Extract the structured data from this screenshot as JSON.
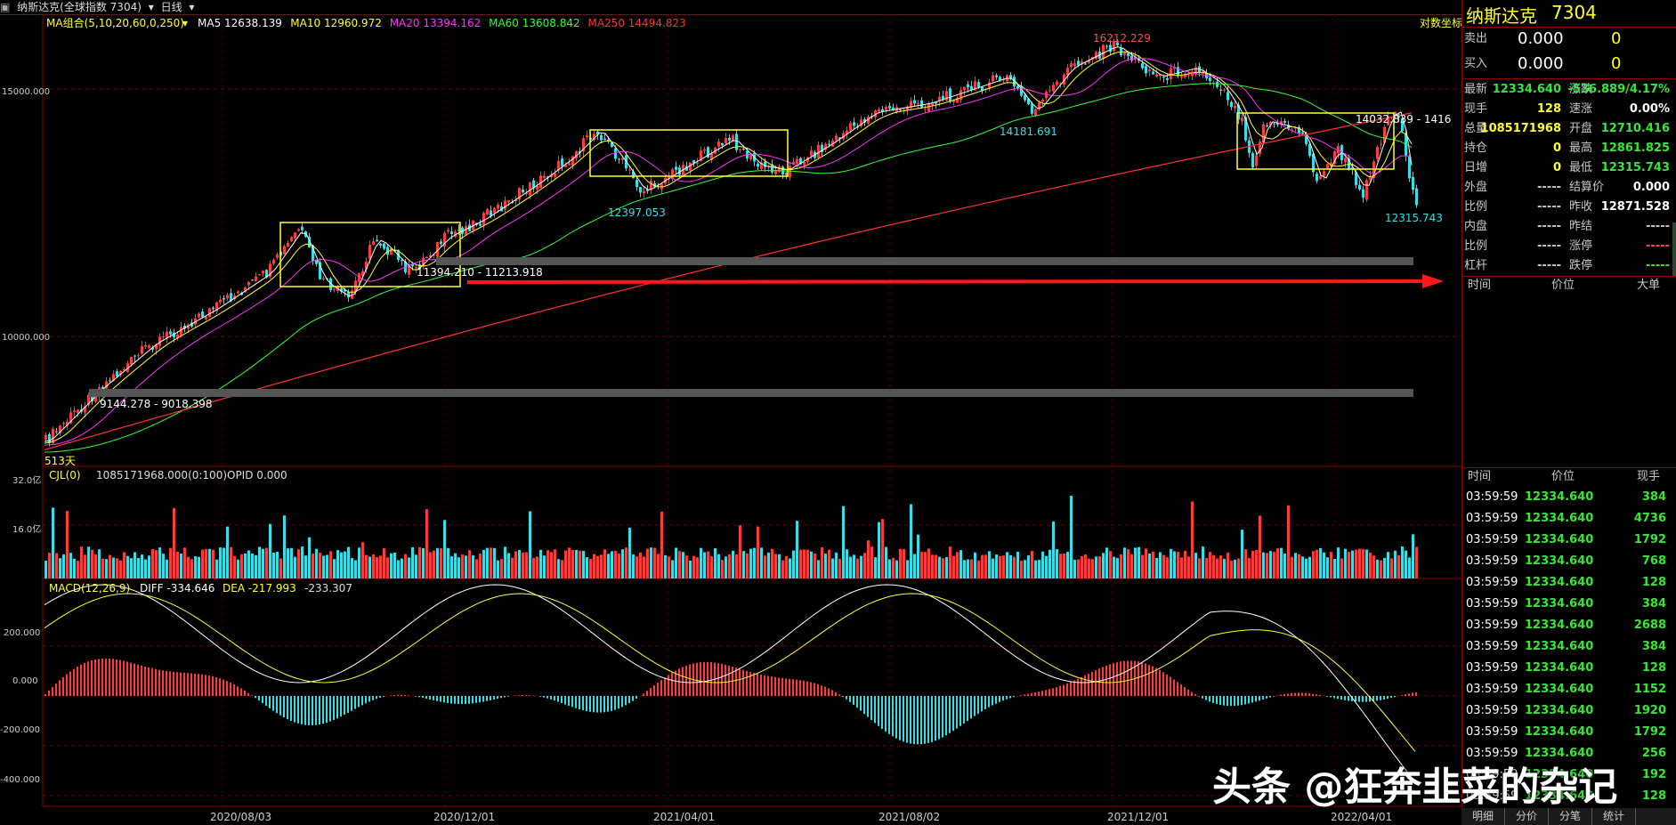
{
  "header": {
    "instrument": "纳斯达克(全球指数 7304)",
    "period": "日线",
    "ma_legend": "MA组合(5,10,20,60,0,250)",
    "ma_items": [
      {
        "label": "MA5 12638.139",
        "color": "#ffffff"
      },
      {
        "label": "MA10 12960.972",
        "color": "#ffff33"
      },
      {
        "label": "MA20 13394.162",
        "color": "#ff33ff"
      },
      {
        "label": "MA60 13608.842",
        "color": "#33ff33"
      },
      {
        "label": "MA250 14494.823",
        "color": "#ff3333"
      }
    ],
    "log_axis": "对数坐标"
  },
  "price_axis": {
    "labels": [
      "15000.000",
      "10000.000"
    ]
  },
  "annotations": {
    "start_days": "513天",
    "box1_range": "11394.210 - 11213.918",
    "lower_range": "9144.278 - 9018.398",
    "low1": "12397.053",
    "low2": "14181.691",
    "high": "16212.229",
    "box4_range": "14032.839 - 1416",
    "last_low": "12315.743"
  },
  "volume_panel": {
    "legend": "CJL(0)",
    "value": "1085171968.000(0:100)",
    "opid": "OPID 0.000",
    "axis": [
      "32.0亿",
      "16.0亿"
    ]
  },
  "macd_panel": {
    "legend": "MACD(12,26,9)",
    "diff": "DIFF -334.646",
    "dea": "DEA -217.993",
    "macd": "-233.307",
    "axis": [
      "200.000",
      "0.000",
      "-200.000",
      "-400.000"
    ]
  },
  "x_axis": [
    "2020/08/03",
    "2020/12/01",
    "2021/04/01",
    "2021/08/02",
    "2021/12/01",
    "2022/04/01"
  ],
  "quote": {
    "name": "纳斯达克",
    "code": "7304",
    "sell": {
      "label": "卖出",
      "price": "0.000",
      "vol": "0"
    },
    "buy": {
      "label": "买入",
      "price": "0.000",
      "vol": "0"
    },
    "left": [
      {
        "label": "最新",
        "value": "12334.640",
        "cls": "g"
      },
      {
        "label": "现手",
        "value": "128",
        "cls": "y"
      },
      {
        "label": "总量",
        "value": "1085171968",
        "cls": "y"
      },
      {
        "label": "持仓",
        "value": "0",
        "cls": "y"
      },
      {
        "label": "日增",
        "value": "0",
        "cls": "y"
      },
      {
        "label": "外盘",
        "value": "-----",
        "cls": "lbl"
      },
      {
        "label": "比例",
        "value": "-----",
        "cls": "lbl"
      },
      {
        "label": "内盘",
        "value": "-----",
        "cls": "lbl"
      },
      {
        "label": "比例",
        "value": "-----",
        "cls": "lbl"
      },
      {
        "label": "杠杆",
        "value": "-----",
        "cls": "lbl"
      }
    ],
    "right": [
      {
        "label": "涨跌",
        "value": "-536.889/4.17%",
        "cls": "g"
      },
      {
        "label": "速涨",
        "value": "0.00%",
        "cls": "w"
      },
      {
        "label": "开盘",
        "value": "12710.416",
        "cls": "g"
      },
      {
        "label": "最高",
        "value": "12861.825",
        "cls": "g"
      },
      {
        "label": "最低",
        "value": "12315.743",
        "cls": "g"
      },
      {
        "label": "结算价",
        "value": "0.000",
        "cls": "w"
      },
      {
        "label": "昨收",
        "value": "12871.528",
        "cls": "w"
      },
      {
        "label": "昨结",
        "value": "-----",
        "cls": "lbl"
      },
      {
        "label": "涨停",
        "value": "-----",
        "cls": "r"
      },
      {
        "label": "跌停",
        "value": "-----",
        "cls": "g"
      }
    ]
  },
  "ticks_header1": {
    "time": "时间",
    "price": "价位",
    "vol": "大单"
  },
  "ticks_header2": {
    "time": "时间",
    "price": "价位",
    "vol": "现手"
  },
  "ticks": [
    {
      "time": "03:59:59",
      "price": "12334.640",
      "vol": "384"
    },
    {
      "time": "03:59:59",
      "price": "12334.640",
      "vol": "4736"
    },
    {
      "time": "03:59:59",
      "price": "12334.640",
      "vol": "1792"
    },
    {
      "time": "03:59:59",
      "price": "12334.640",
      "vol": "768"
    },
    {
      "time": "03:59:59",
      "price": "12334.640",
      "vol": "128"
    },
    {
      "time": "03:59:59",
      "price": "12334.640",
      "vol": "384"
    },
    {
      "time": "03:59:59",
      "price": "12334.640",
      "vol": "2688"
    },
    {
      "time": "03:59:59",
      "price": "12334.640",
      "vol": "384"
    },
    {
      "time": "03:59:59",
      "price": "12334.640",
      "vol": "128"
    },
    {
      "time": "03:59:59",
      "price": "12334.640",
      "vol": "1152"
    },
    {
      "time": "03:59:59",
      "price": "12334.640",
      "vol": "1920"
    },
    {
      "time": "03:59:59",
      "price": "12334.640",
      "vol": "1792"
    },
    {
      "time": "03:59:59",
      "price": "12334.640",
      "vol": "256"
    },
    {
      "time": "03:59:59",
      "price": "12334.640",
      "vol": "192"
    },
    {
      "time": "03:59:59",
      "price": "12334.640",
      "vol": "128"
    }
  ],
  "tabs": [
    "明细",
    "分价",
    "分笔",
    "统计"
  ],
  "watermark": "头条 @狂奔韭菜的杂记",
  "colors": {
    "up": "#ff3b3b",
    "down": "#33e0e8",
    "box": "#ffff33",
    "arrow": "#ff1a1a"
  }
}
